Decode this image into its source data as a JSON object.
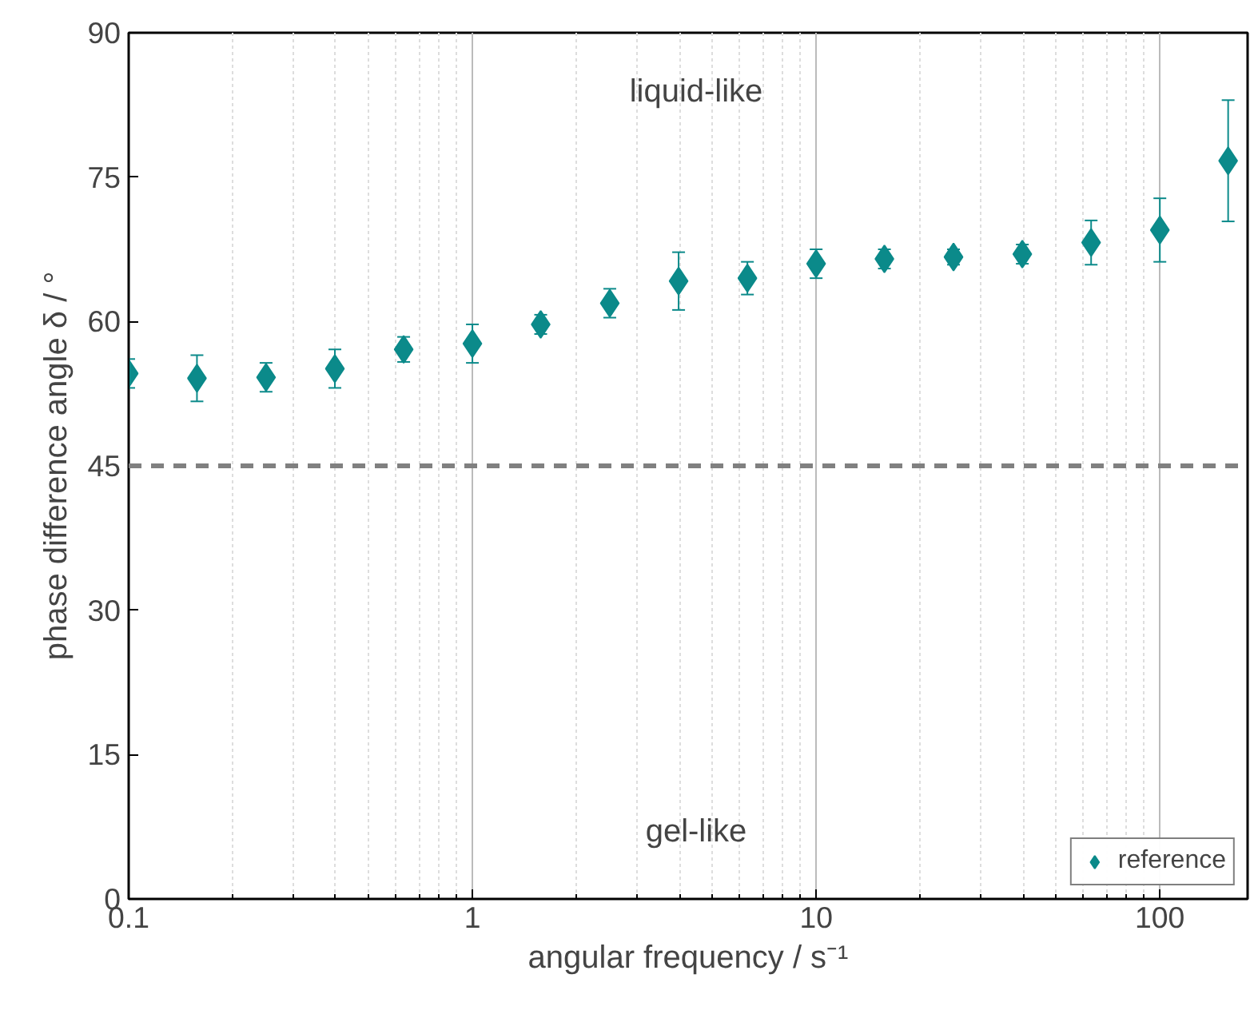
{
  "chart_data": {
    "type": "scatter",
    "xlabel": "angular frequency / s⁻¹",
    "ylabel": "phase difference angle δ / °",
    "x": [
      0.1,
      0.158,
      0.251,
      0.398,
      0.631,
      1,
      1.58,
      2.51,
      3.98,
      6.31,
      10,
      15.8,
      25.1,
      39.8,
      63.1,
      100,
      158
    ],
    "series": [
      {
        "name": "reference",
        "color": "#0b8a8a",
        "values": [
          54.6,
          54.1,
          54.2,
          55.1,
          57.1,
          57.7,
          59.7,
          61.9,
          64.2,
          64.5,
          66.0,
          66.5,
          66.7,
          67.0,
          68.2,
          69.5,
          76.7
        ],
        "errors": [
          1.5,
          2.4,
          1.5,
          2,
          1.3,
          2,
          1,
          1.5,
          3,
          1.7,
          1.5,
          1,
          0.8,
          1,
          2.3,
          3.3,
          6.3
        ]
      }
    ],
    "marker": "diamond",
    "log": "x",
    "xlim": [
      0.1,
      180
    ],
    "xticks": [
      0.1,
      1,
      10,
      100
    ],
    "ylim": [
      0,
      90
    ],
    "yticks": [
      0,
      15,
      30,
      45,
      60,
      75,
      90
    ],
    "grid": "x",
    "legend": "bottom right",
    "ref_lines": [
      {
        "axis": "y",
        "value": 45,
        "label": null,
        "color": "#808080",
        "line_style": "dashed"
      }
    ],
    "annotations": [
      "liquid-like",
      "gel-like"
    ]
  }
}
